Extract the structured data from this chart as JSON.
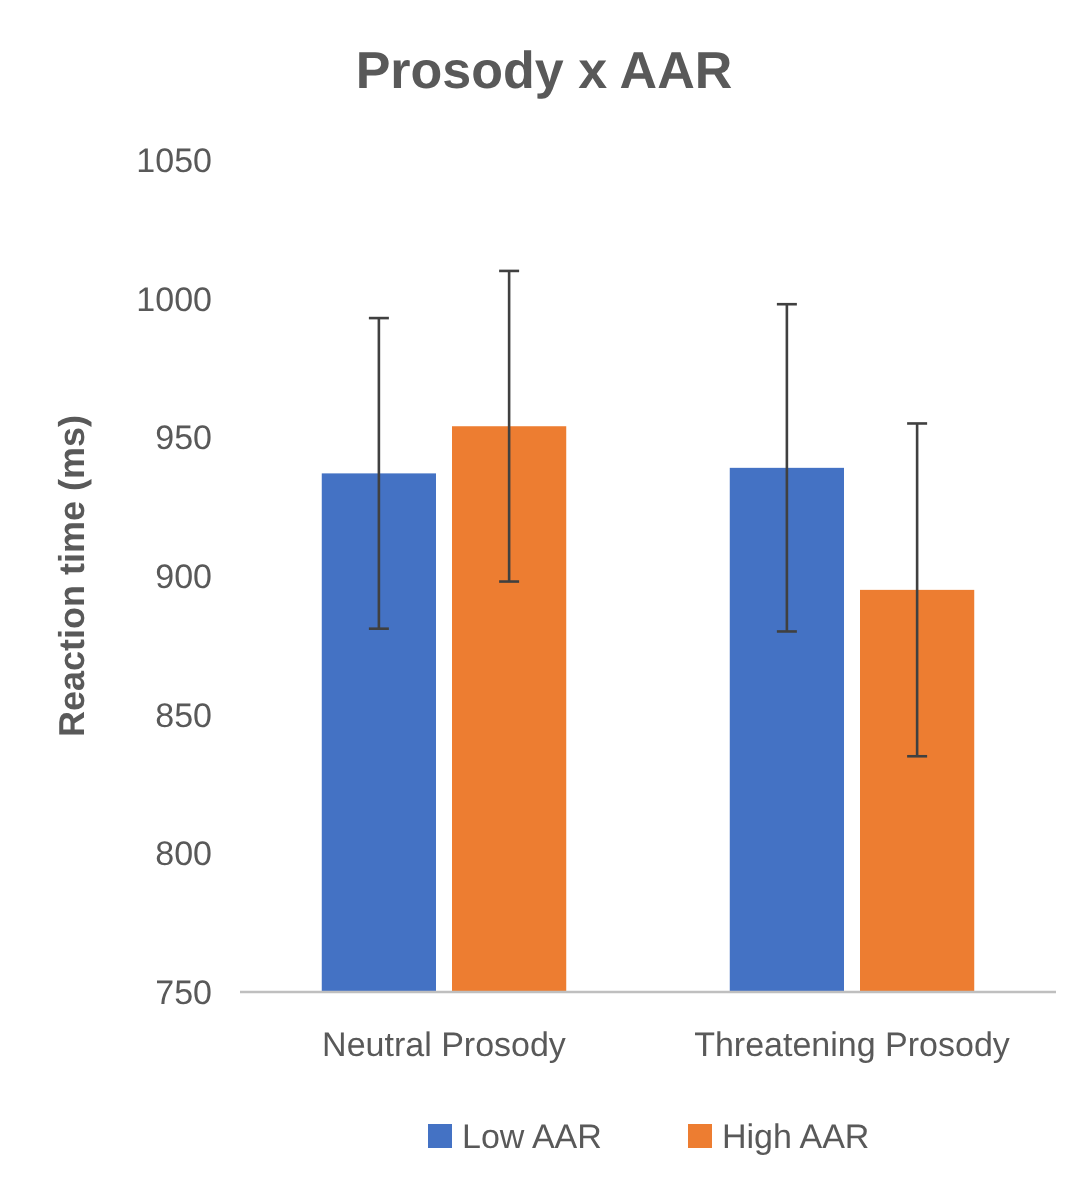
{
  "chart_data": {
    "type": "bar",
    "title": "Prosody x AAR",
    "ylabel": "Reaction time (ms)",
    "categories": [
      "Neutral Prosody",
      "Threatening Prosody"
    ],
    "series": [
      {
        "name": "Low AAR",
        "color": "#4472c4",
        "values": [
          937,
          939
        ],
        "errors": [
          56,
          59
        ]
      },
      {
        "name": "High AAR",
        "color": "#ed7d31",
        "values": [
          954,
          895
        ],
        "errors": [
          56,
          60
        ]
      }
    ],
    "ylim": [
      750,
      1050
    ],
    "yticks": [
      750,
      800,
      850,
      900,
      950,
      1000,
      1050
    ],
    "grid": false,
    "legend": "bottom"
  }
}
